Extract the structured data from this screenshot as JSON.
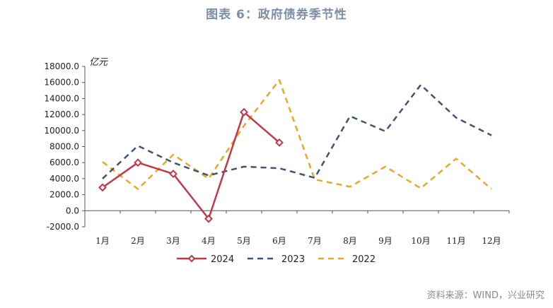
{
  "title": "图表 6：政府债券季节性",
  "source": "资料来源：WIND，兴业研究",
  "chart_data": {
    "type": "line",
    "ylabel": "亿元",
    "ylim": [
      -2000,
      18000
    ],
    "yticks": [
      -2000,
      0,
      2000,
      4000,
      6000,
      8000,
      10000,
      12000,
      14000,
      16000,
      18000
    ],
    "categories": [
      "1月",
      "2月",
      "3月",
      "4月",
      "5月",
      "6月",
      "7月",
      "8月",
      "9月",
      "10月",
      "11月",
      "12月"
    ],
    "legend_position": "bottom",
    "grid": false,
    "series": [
      {
        "name": "2024",
        "color": "#c0394b",
        "style": "solid-diamond",
        "values": [
          2900,
          6000,
          4600,
          -1000,
          12300,
          8500,
          null,
          null,
          null,
          null,
          null,
          null
        ]
      },
      {
        "name": "2023",
        "color": "#3f5473",
        "style": "dashed",
        "values": [
          4000,
          8100,
          6000,
          4400,
          5500,
          5300,
          4100,
          11800,
          9900,
          15700,
          11600,
          9400
        ]
      },
      {
        "name": "2022",
        "color": "#e8a829",
        "style": "dashed",
        "values": [
          6100,
          2700,
          7000,
          4000,
          10600,
          16300,
          3900,
          3000,
          5500,
          2800,
          6500,
          2700
        ]
      }
    ]
  }
}
